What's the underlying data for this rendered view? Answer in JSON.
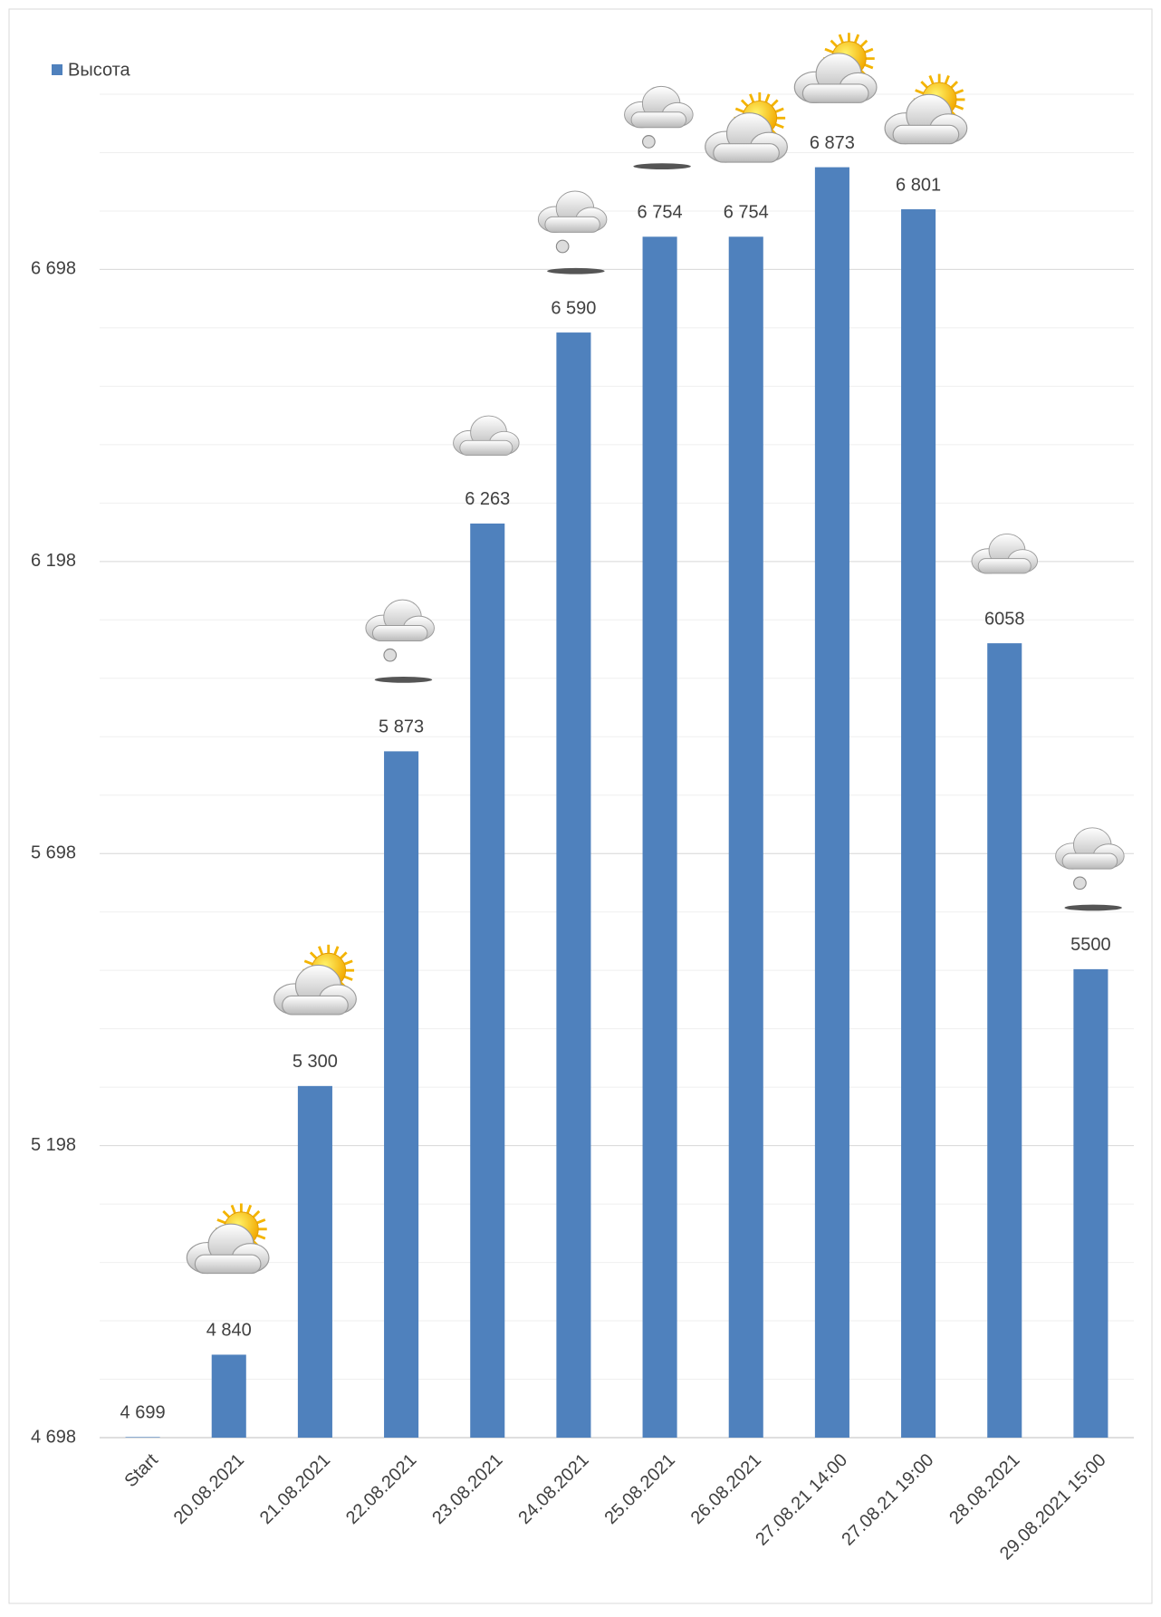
{
  "chart_data": {
    "type": "bar",
    "series": [
      {
        "name": "Высота",
        "color": "#4f81bd",
        "values": [
          4699,
          4840,
          5300,
          5873,
          6263,
          6590,
          6754,
          6754,
          6873,
          6801,
          6058,
          5500
        ],
        "value_labels": [
          "4 699",
          "4 840",
          "5 300",
          "5 873",
          "6 263",
          "6 590",
          "6 754",
          "6 754",
          "6 873",
          "6 801",
          "6058",
          "5500"
        ]
      }
    ],
    "categories": [
      "Start",
      "20.08.2021",
      "21.08.2021",
      "22.08.2021",
      "23.08.2021",
      "24.08.2021",
      "25.08.2021",
      "26.08.2021",
      "27.08.21 14:00",
      "27.08.21 19:00",
      "28.08.2021",
      "29.08.2021 15:00"
    ],
    "ylim": [
      4698,
      6998
    ],
    "yticks": [
      {
        "value": 4698,
        "label": "4 698"
      },
      {
        "value": 5198,
        "label": "5 198"
      },
      {
        "value": 5698,
        "label": "5 698"
      },
      {
        "value": 6198,
        "label": "6 198"
      },
      {
        "value": 6698,
        "label": "6 698"
      }
    ],
    "grid": true,
    "legend": "top-left"
  }
}
